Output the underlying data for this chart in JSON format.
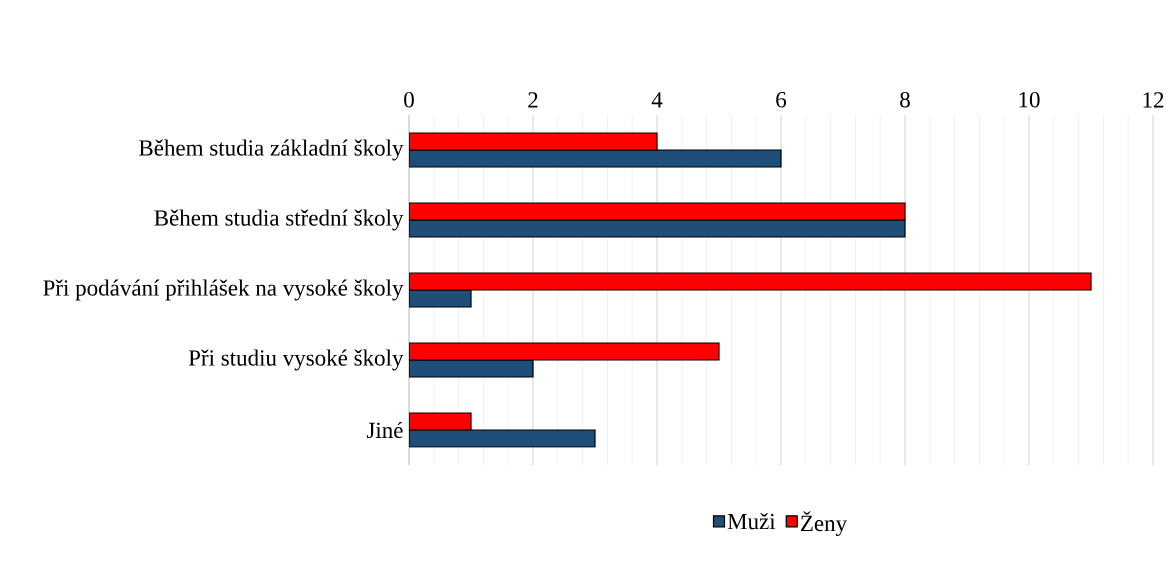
{
  "chart_data": {
    "type": "bar",
    "orientation": "horizontal",
    "categories": [
      "Během studia základní školy",
      "Během studia střední školy",
      "Při podávání přihlášek na vysoké školy",
      "Při studiu vysoké školy",
      "Jiné"
    ],
    "series": [
      {
        "name": "Muži",
        "color": "#1f4e79",
        "values": [
          6,
          8,
          1,
          2,
          3
        ]
      },
      {
        "name": "Ženy",
        "color": "#ff0000",
        "values": [
          4,
          8,
          11,
          5,
          1
        ]
      }
    ],
    "xlim": [
      0,
      12
    ],
    "xticks": [
      0,
      2,
      4,
      6,
      8,
      10,
      12
    ],
    "grid": "x",
    "legend": "bottom"
  }
}
